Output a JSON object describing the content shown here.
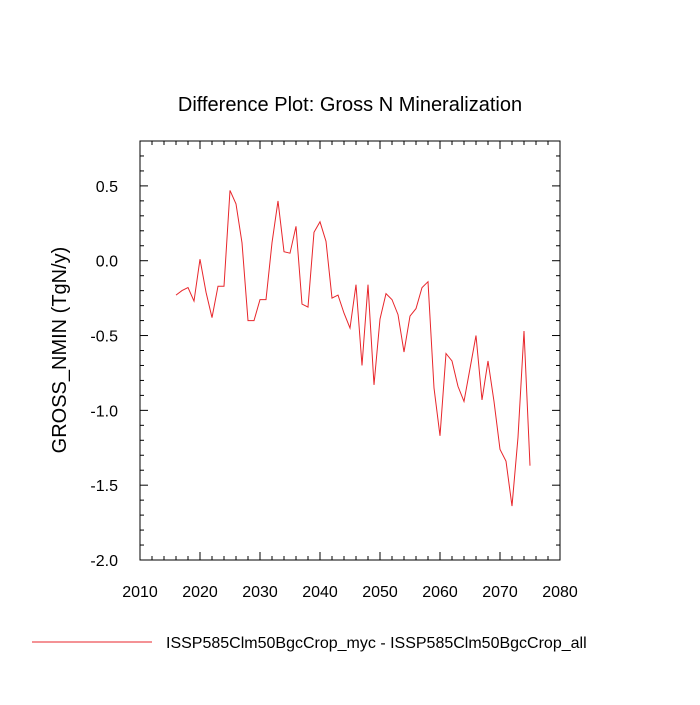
{
  "chart_data": {
    "type": "line",
    "title": "Difference Plot: Gross N Mineralization",
    "xlabel": "",
    "ylabel": "GROSS_NMIN  (TgN/y)",
    "xlim": [
      2010,
      2080
    ],
    "ylim": [
      -2.0,
      0.8
    ],
    "xticks": [
      2010,
      2020,
      2030,
      2040,
      2050,
      2060,
      2070,
      2080
    ],
    "xtick_labels": [
      "2010",
      "2020",
      "2030",
      "2040",
      "2050",
      "2060",
      "2070",
      "2080"
    ],
    "yticks": [
      -2.0,
      -1.5,
      -1.0,
      -0.5,
      0.0,
      0.5
    ],
    "ytick_labels": [
      "-2.0",
      "-1.5",
      "-1.0",
      "-0.5",
      "0.0",
      "0.5"
    ],
    "grid": false,
    "legend_position": "bottom",
    "line_color": "#e8262b",
    "series": [
      {
        "name": "ISSP585Clm50BgcCrop_myc - ISSP585Clm50BgcCrop_all",
        "x": [
          2016,
          2017,
          2018,
          2019,
          2020,
          2021,
          2022,
          2023,
          2024,
          2025,
          2026,
          2027,
          2028,
          2029,
          2030,
          2031,
          2032,
          2033,
          2034,
          2035,
          2036,
          2037,
          2038,
          2039,
          2040,
          2041,
          2042,
          2043,
          2044,
          2045,
          2046,
          2047,
          2048,
          2049,
          2050,
          2051,
          2052,
          2053,
          2054,
          2055,
          2056,
          2057,
          2058,
          2059,
          2060,
          2061,
          2062,
          2063,
          2064,
          2065,
          2066,
          2067,
          2068,
          2069,
          2070,
          2071,
          2072,
          2073,
          2074,
          2075
        ],
        "y": [
          -0.23,
          -0.2,
          -0.18,
          -0.27,
          0.01,
          -0.21,
          -0.38,
          -0.17,
          -0.17,
          0.47,
          0.38,
          0.12,
          -0.4,
          -0.4,
          -0.26,
          -0.26,
          0.12,
          0.4,
          0.06,
          0.05,
          0.23,
          -0.29,
          -0.31,
          0.19,
          0.26,
          0.13,
          -0.25,
          -0.23,
          -0.35,
          -0.45,
          -0.16,
          -0.7,
          -0.16,
          -0.83,
          -0.39,
          -0.22,
          -0.26,
          -0.36,
          -0.61,
          -0.37,
          -0.32,
          -0.18,
          -0.14,
          -0.85,
          -1.17,
          -0.62,
          -0.67,
          -0.84,
          -0.94,
          -0.72,
          -0.5,
          -0.93,
          -0.67,
          -0.94,
          -1.26,
          -1.34,
          -1.64,
          -1.18,
          -0.47,
          -1.37
        ]
      }
    ]
  }
}
